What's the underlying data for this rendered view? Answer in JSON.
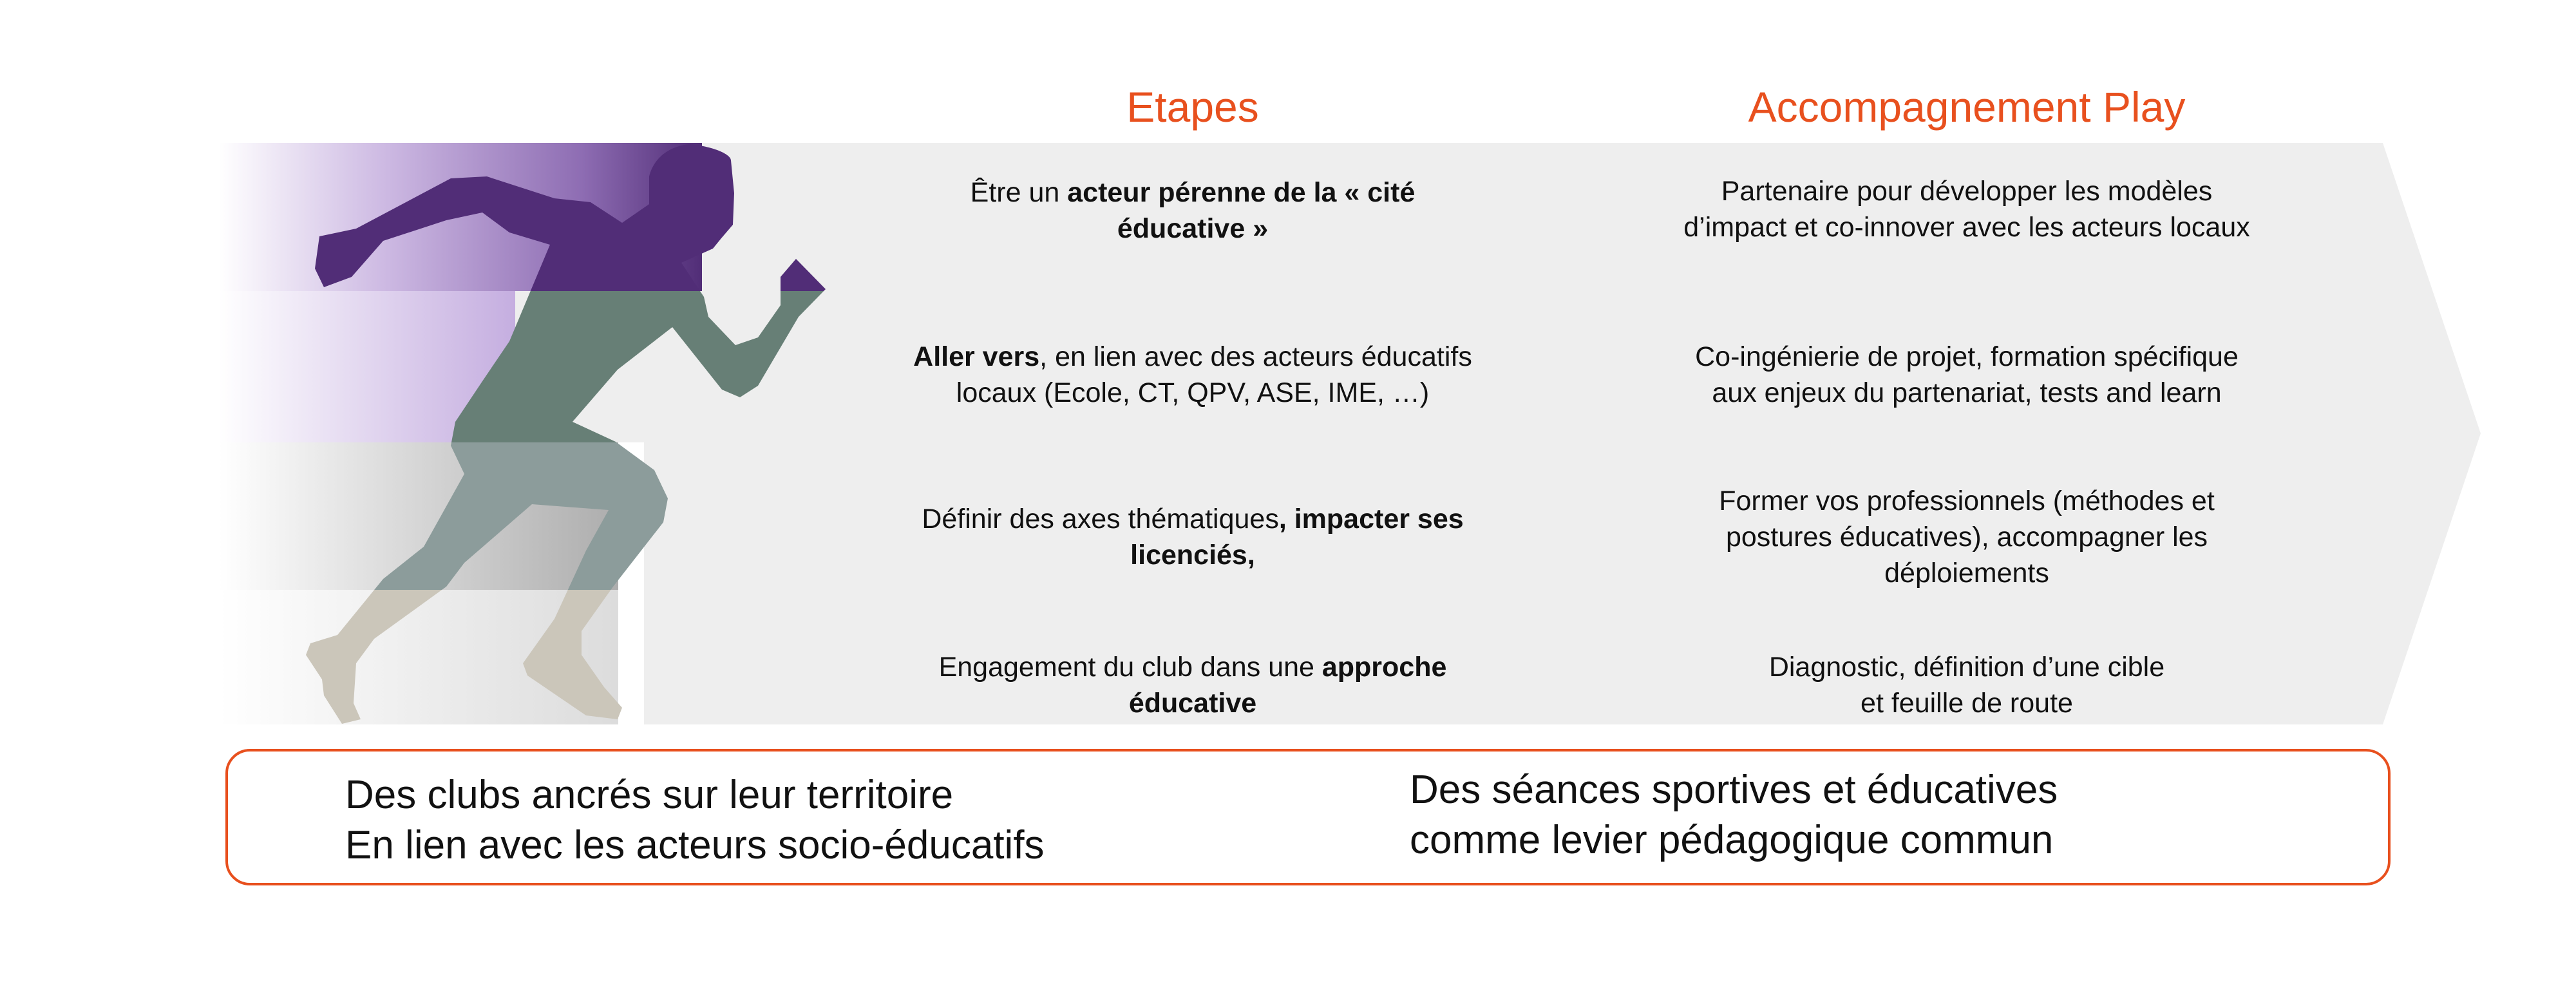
{
  "headers": {
    "etapes": "Etapes",
    "accompagnement": "Accompagnement Play"
  },
  "rows": [
    {
      "etape": [
        {
          "t": "Être un ",
          "b": false
        },
        {
          "t": "acteur pérenne de la « cité éducative »",
          "b": true
        }
      ],
      "accompagnement": "Partenaire pour développer les modèles d’impact et co-innover avec les acteurs locaux"
    },
    {
      "etape": [
        {
          "t": "Aller vers",
          "b": true
        },
        {
          "t": ", en lien avec des acteurs éducatifs locaux (Ecole, CT, QPV, ASE, IME, …)",
          "b": false
        }
      ],
      "accompagnement": "Co-ingénierie de projet, formation spécifique aux enjeux du partenariat, tests and learn"
    },
    {
      "etape": [
        {
          "t": "Définir des axes thématiques",
          "b": false
        },
        {
          "t": ", impacter ses licenciés,",
          "b": true
        }
      ],
      "accompagnement": "Former vos professionnels (méthodes et postures éducatives), accompagner les déploiements"
    },
    {
      "etape": [
        {
          "t": "Engagement du club dans une ",
          "b": false
        },
        {
          "t": "approche éducative",
          "b": true
        }
      ],
      "accompagnement": "Diagnostic, définition d’une cible et feuille de route"
    }
  ],
  "bottom": {
    "left": [
      "Des clubs ancrés sur leur territoire",
      "En lien avec les acteurs socio-éducatifs"
    ],
    "right": [
      "Des séances sportives et éducatives",
      "comme levier pédagogique commun"
    ]
  },
  "colors": {
    "accent": "#e8501e",
    "runner_top": "#512d77",
    "runner_mid": "#677f76",
    "runner_low": "#8c9c9b",
    "runner_feet": "#cbc6ba",
    "band": "#eeeeee"
  },
  "icons": {
    "runner": "runner-silhouette-icon",
    "arrow": "chevron-arrow-shape"
  }
}
